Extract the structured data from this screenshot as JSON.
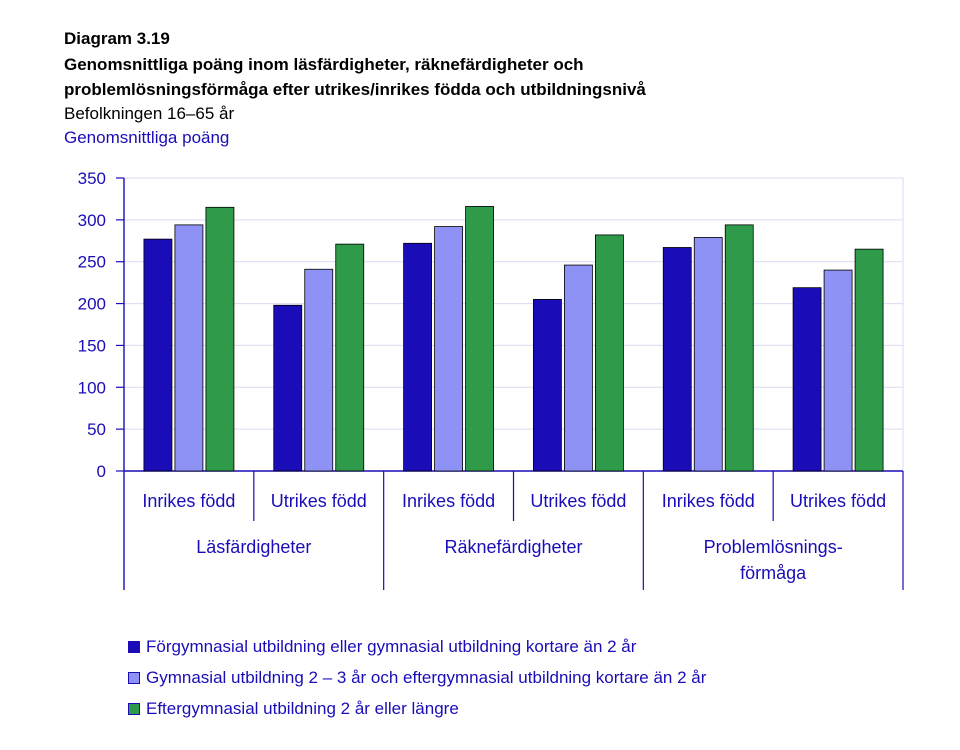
{
  "header": {
    "diagram_number": "Diagram 3.19",
    "title_line1": "Genomsnittliga poäng inom läsfärdigheter, räknefärdigheter och",
    "title_line2": "problemlösningsförmåga efter utrikes/inrikes födda och utbildningsnivå",
    "subtitle": "Befolkningen 16–65 år",
    "ylabel": "Genomsnittliga poäng"
  },
  "chart_data": {
    "type": "bar",
    "title": "Genomsnittliga poäng inom läsfärdigheter, räknefärdigheter och problemlösningsförmåga efter utrikes/inrikes födda och utbildningsnivå",
    "ylabel": "Genomsnittliga poäng",
    "ylim": [
      0,
      350
    ],
    "yticks": [
      0,
      50,
      100,
      150,
      200,
      250,
      300,
      350
    ],
    "grid": true,
    "legend_position": "bottom",
    "groups": [
      {
        "label_lines": [
          "Läsfärdigheter"
        ],
        "categories": [
          "Inrikes född",
          "Utrikes född"
        ]
      },
      {
        "label_lines": [
          "Räknefärdigheter"
        ],
        "categories": [
          "Inrikes född",
          "Utrikes född"
        ]
      },
      {
        "label_lines": [
          "Problemlösnings-",
          "förmåga"
        ],
        "categories": [
          "Inrikes född",
          "Utrikes född"
        ]
      }
    ],
    "series": [
      {
        "name": "Förgymnasial utbildning eller gymnasial utbildning kortare än 2 år",
        "color": "#1a0db8",
        "values": [
          277,
          198,
          272,
          205,
          267,
          219
        ]
      },
      {
        "name": "Gymnasial utbildning 2 – 3 år och eftergymnasial utbildning kortare än 2 år",
        "color": "#8f92f5",
        "values": [
          294,
          241,
          292,
          246,
          279,
          240
        ]
      },
      {
        "name": "Eftergymnasial utbildning 2 år eller längre",
        "color": "#2f9b4a",
        "values": [
          315,
          271,
          316,
          282,
          294,
          265
        ]
      }
    ]
  },
  "colors": {
    "axis": "#1a0db8",
    "gridline": "#d9d9f5",
    "bar_outline": "#000000"
  }
}
